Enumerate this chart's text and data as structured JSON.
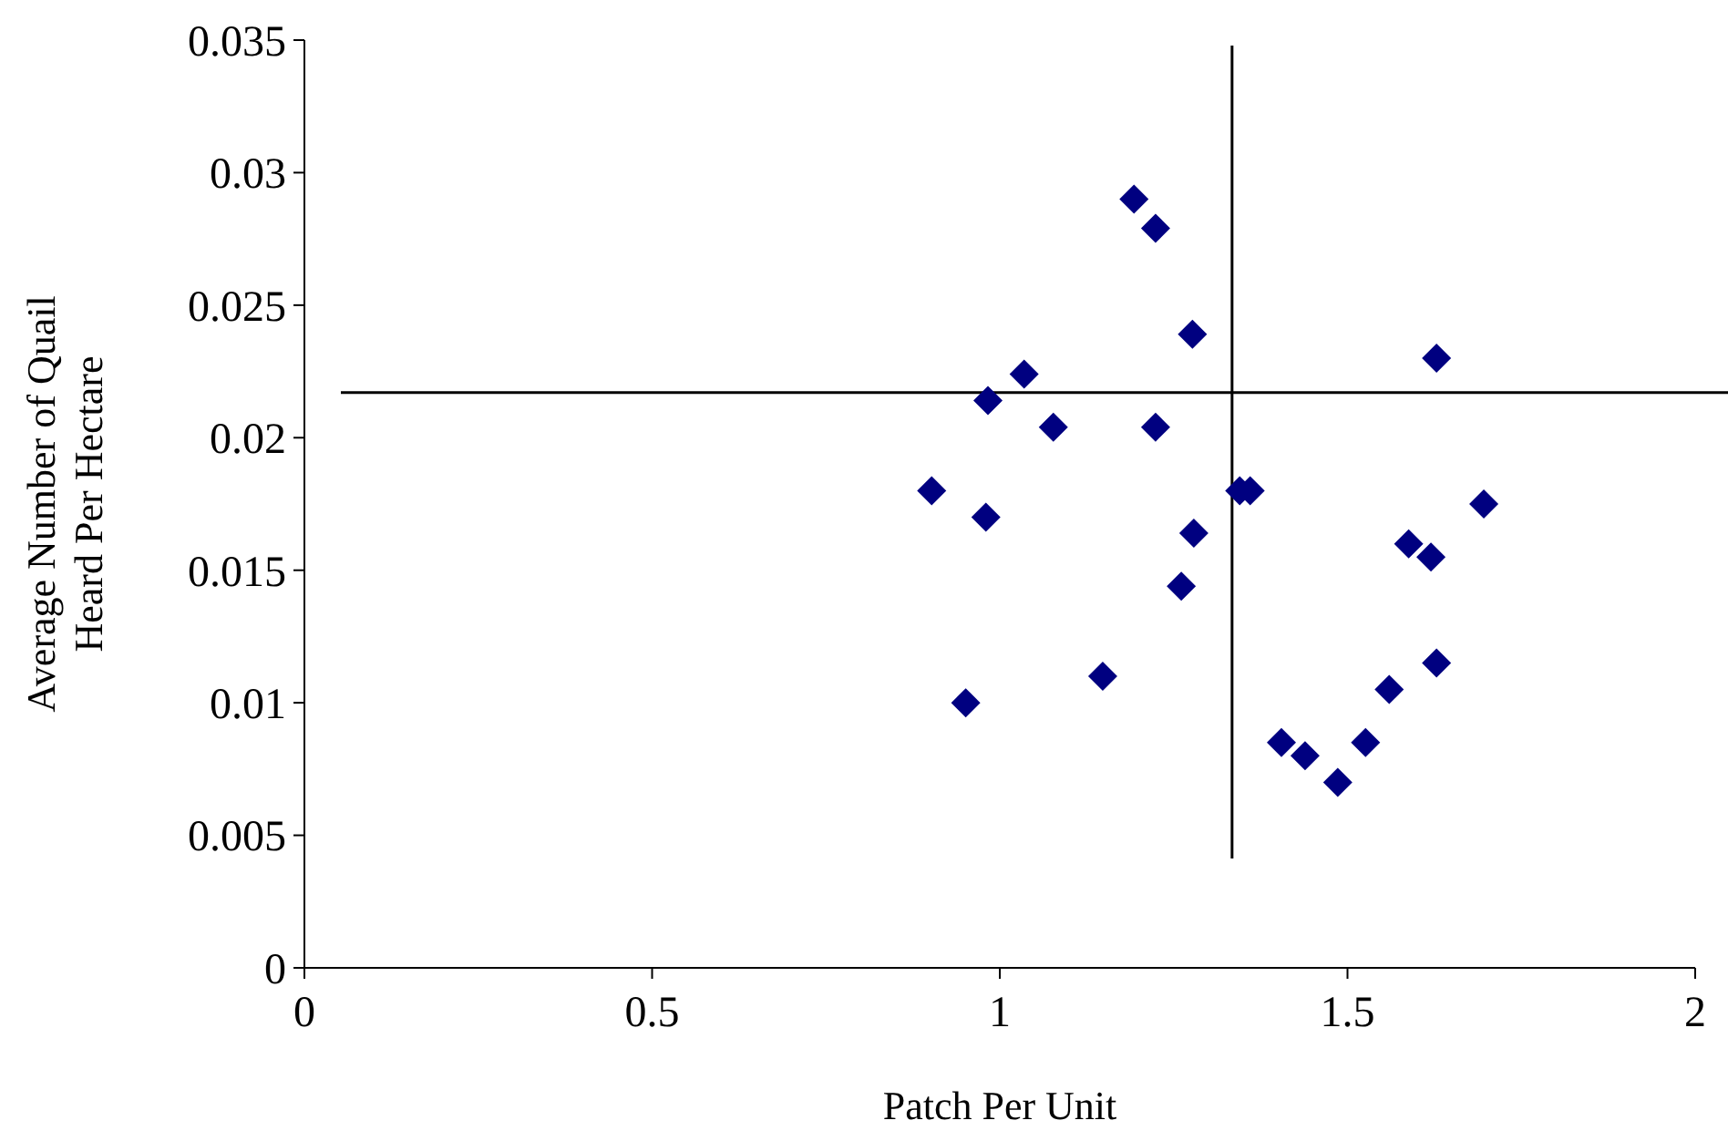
{
  "chart_data": {
    "type": "scatter",
    "xlabel": "Patch Per Unit",
    "ylabel": "Average Number of Quail Heard Per Hectare",
    "xlim": [
      0,
      2
    ],
    "xticks": [
      0,
      0.5,
      1,
      1.5,
      2
    ],
    "ylim": [
      0,
      0.035
    ],
    "yticks": [
      0,
      0.005,
      0.01,
      0.015,
      0.02,
      0.025,
      0.03,
      0.035
    ],
    "grid": false,
    "marker": "diamond",
    "series": [
      {
        "color": "#000080",
        "x": [
          0.902,
          0.951,
          0.98,
          0.983,
          1.035,
          1.077,
          1.148,
          1.193,
          1.224,
          1.224,
          1.261,
          1.277,
          1.279,
          1.345,
          1.36,
          1.405,
          1.439,
          1.486,
          1.526,
          1.56,
          1.588,
          1.62,
          1.628,
          1.628,
          1.696
        ],
        "values": [
          0.018,
          0.01,
          0.017,
          0.0214,
          0.0224,
          0.0204,
          0.011,
          0.029,
          0.0279,
          0.0204,
          0.0144,
          0.0239,
          0.0164,
          0.018,
          0.018,
          0.0085,
          0.008,
          0.007,
          0.0085,
          0.0105,
          0.016,
          0.0155,
          0.023,
          0.0115,
          0.0175
        ]
      }
    ],
    "ref_lines": [
      {
        "axis": "x",
        "value": 1.334,
        "color": "#000000"
      },
      {
        "axis": "y",
        "value": 0.0217,
        "color": "#000000"
      }
    ]
  }
}
